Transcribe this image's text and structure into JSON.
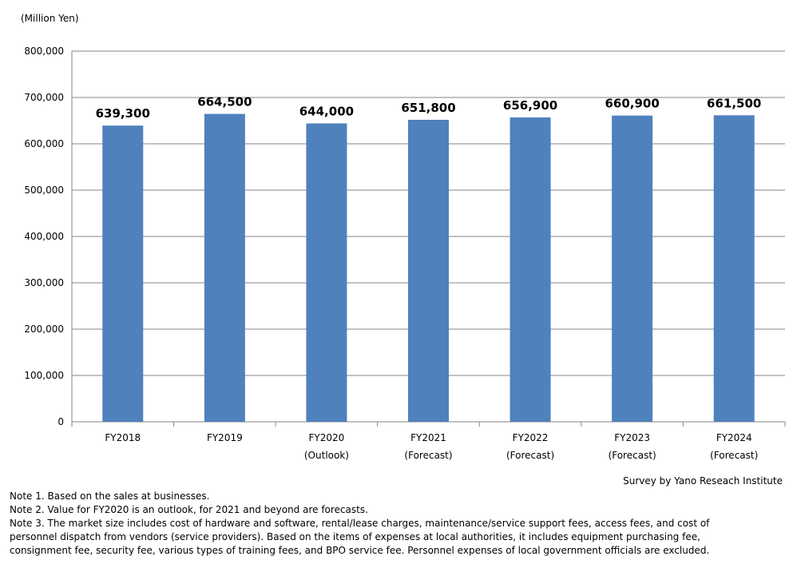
{
  "chart_data": {
    "type": "bar",
    "unit_label": "(Million  Yen)",
    "categories": [
      [
        "FY2018"
      ],
      [
        "FY2019"
      ],
      [
        "FY2020",
        "(Outlook)"
      ],
      [
        "FY2021",
        "(Forecast)"
      ],
      [
        "FY2022",
        "(Forecast)"
      ],
      [
        "FY2023",
        "(Forecast)"
      ],
      [
        "FY2024",
        "(Forecast)"
      ]
    ],
    "values": [
      639300,
      664500,
      644000,
      651800,
      656900,
      660900,
      661500
    ],
    "value_labels": [
      "639,300",
      "664,500",
      "644,000",
      "651,800",
      "656,900",
      "660,900",
      "661,500"
    ],
    "ylim": [
      0,
      800000
    ],
    "yticks": [
      0,
      100000,
      200000,
      300000,
      400000,
      500000,
      600000,
      700000,
      800000
    ],
    "ytick_labels": [
      "0",
      "100,000",
      "200,000",
      "300,000",
      "400,000",
      "500,000",
      "600,000",
      "700,000",
      "800,000"
    ],
    "grid": true,
    "bar_color": "#4f81bd"
  },
  "source": "Survey by Yano Reseach Institute",
  "notes": [
    "Note 1. Based on the sales at businesses.",
    "Note 2. Value for FY2020 is an outlook, for 2021 and beyond are forecasts.",
    "Note 3. The market size includes cost of hardware and software, rental/lease charges, maintenance/service support fees, access fees, and cost of",
    "personnel dispatch from vendors (service providers). Based on the items of expenses at local authorities, it includes equipment purchasing fee,",
    "consignment fee, security fee, various types of training fees, and BPO service fee. Personnel expenses of local government officials are excluded."
  ]
}
